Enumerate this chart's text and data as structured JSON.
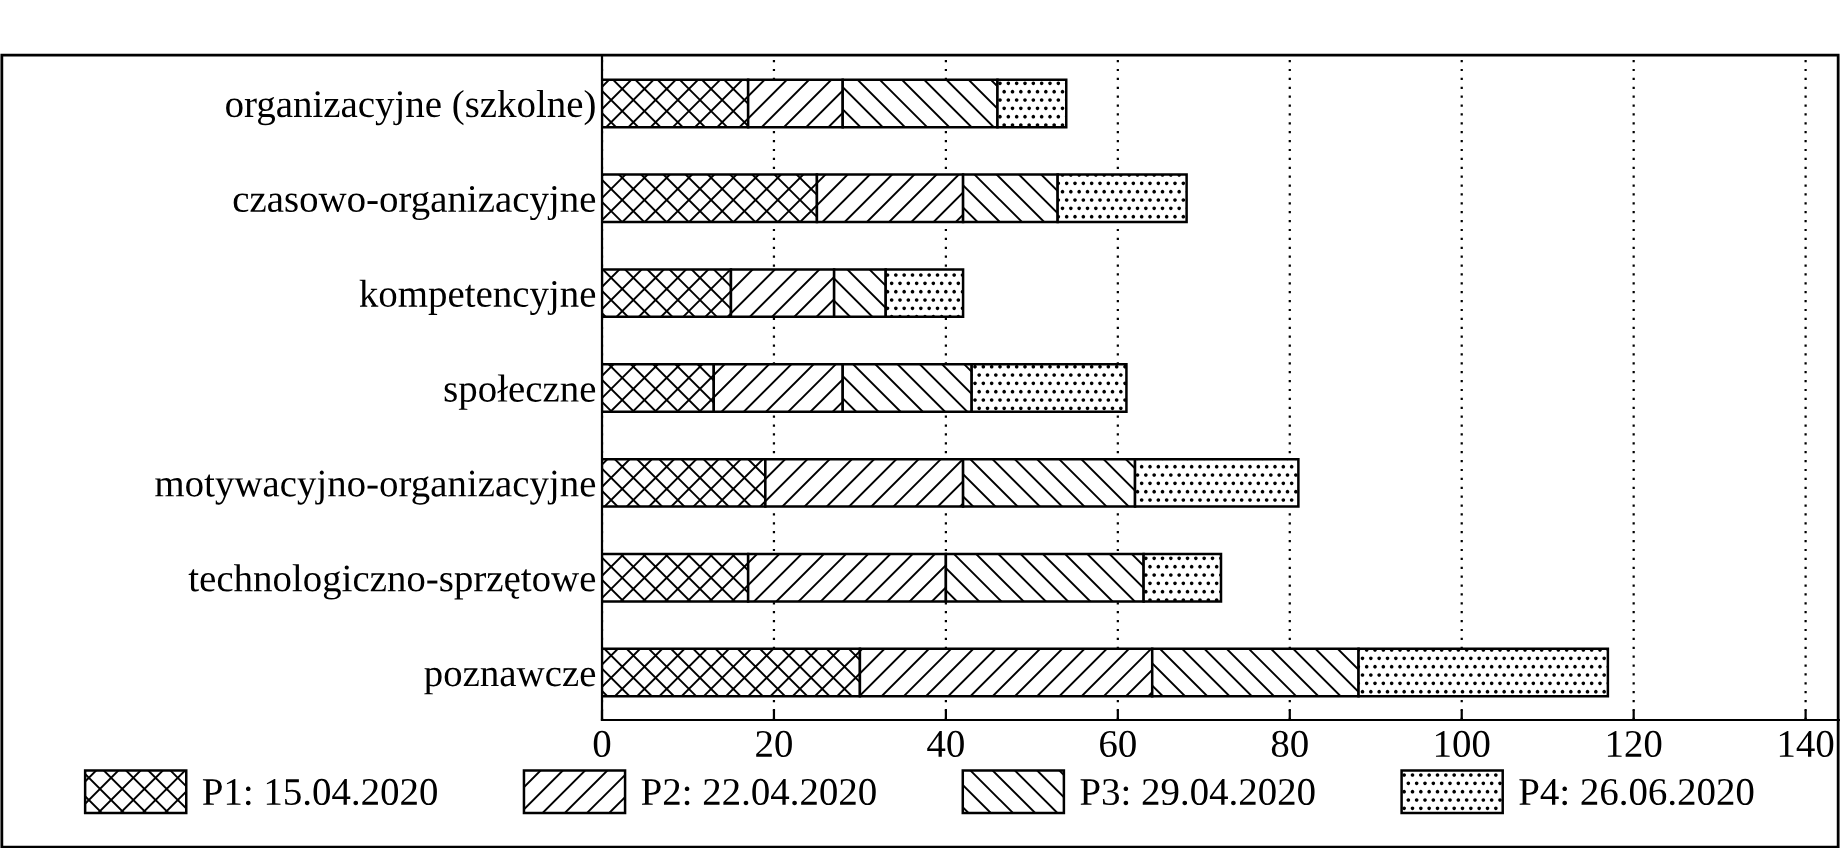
{
  "chart_data": {
    "type": "bar",
    "orientation": "horizontal",
    "stacked": true,
    "categories": [
      "organizacyjne (szkolne)",
      "czasowo-organizacyjne",
      "kompetencyjne",
      "społeczne",
      "motywacyjno-organizacyjne",
      "technologiczno-sprzętowe",
      "poznawcze"
    ],
    "series": [
      {
        "name": "P1: 15.04.2020",
        "color": "#000000",
        "values": [
          17,
          25,
          15,
          13,
          19,
          17,
          30
        ]
      },
      {
        "name": "P2: 22.04.2020",
        "color": "#000000",
        "values": [
          11,
          17,
          12,
          15,
          23,
          23,
          34
        ]
      },
      {
        "name": "P3: 29.04.2020",
        "color": "#000000",
        "values": [
          18,
          11,
          6,
          15,
          20,
          23,
          24
        ]
      },
      {
        "name": "P4: 26.06.2020",
        "color": "#000000",
        "values": [
          8,
          15,
          9,
          18,
          19,
          9,
          29
        ]
      }
    ],
    "xlim": [
      0,
      144
    ],
    "xticks": [
      0,
      20,
      40,
      60,
      80,
      100,
      120,
      140
    ],
    "grid": "x",
    "legend": "bottom"
  }
}
